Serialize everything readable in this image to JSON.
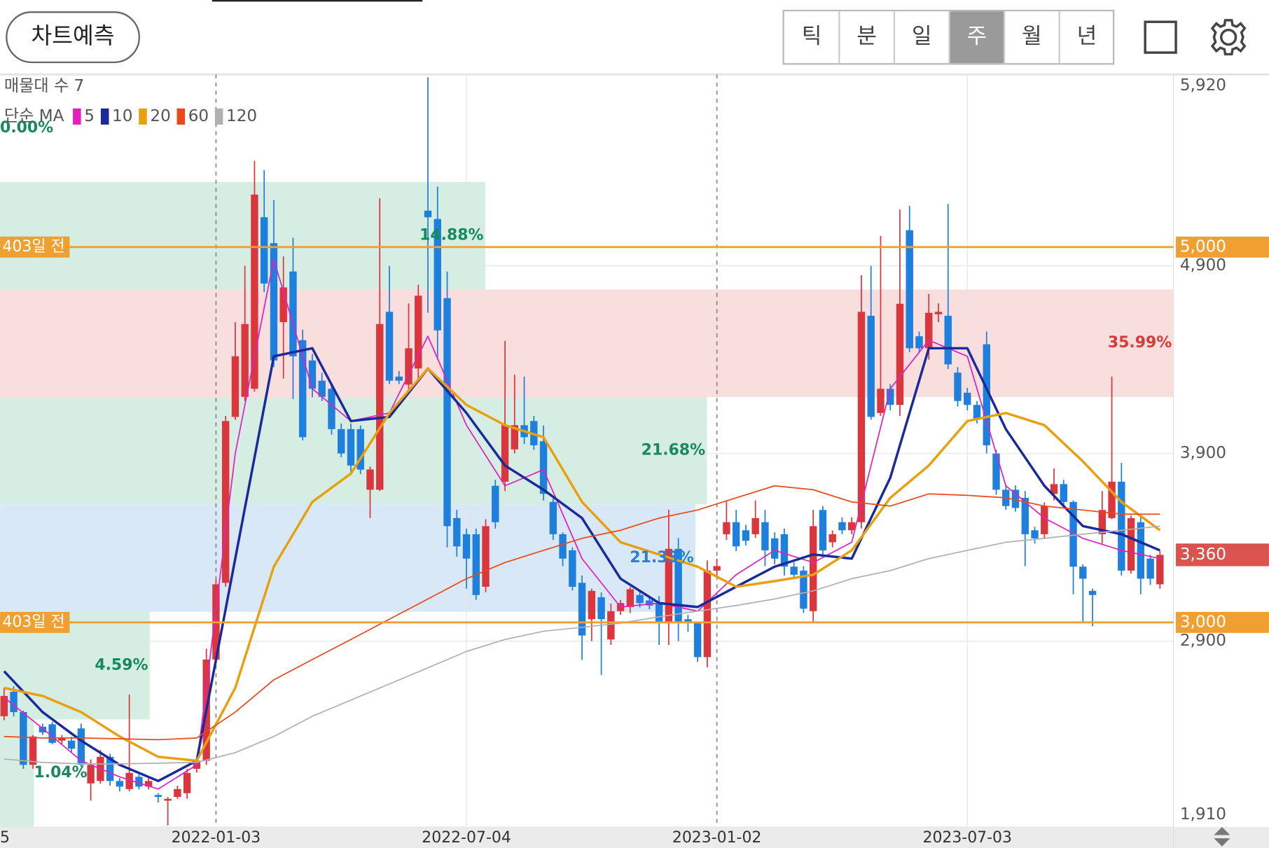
{
  "header": {
    "predict_button": "차트예측",
    "tabs": [
      "틱",
      "분",
      "일",
      "주",
      "월",
      "년"
    ],
    "active_tab": "주"
  },
  "chart_data": {
    "type": "candlestick",
    "volume_profile_label": "매물대 수 7",
    "ma_label": "단순 MA",
    "ylim": [
      1910,
      5920
    ],
    "yticks": [
      {
        "value": 5920,
        "label": "5,920"
      },
      {
        "value": 4900,
        "label": "4,900"
      },
      {
        "value": 3900,
        "label": "3,900"
      },
      {
        "value": 2900,
        "label": "2,900"
      },
      {
        "value": 1910,
        "label": "1,910"
      }
    ],
    "xlim": [
      -0.42,
      121.4
    ],
    "xticks": [
      {
        "value": -0.2,
        "label": "5"
      },
      {
        "value": 22,
        "label": "2022-01-03"
      },
      {
        "value": 48,
        "label": "2022-07-04"
      },
      {
        "value": 74,
        "label": "2023-01-02"
      },
      {
        "value": 100,
        "label": "2023-07-03"
      }
    ],
    "grid": true,
    "up_color": "#d9363e",
    "down_color": "#1f7fdc",
    "candles": [
      [
        2500,
        2651,
        2478,
        2608
      ],
      [
        2630,
        2660,
        2500,
        2522
      ],
      [
        2522,
        2530,
        2220,
        2241
      ],
      [
        2241,
        2400,
        2220,
        2392
      ],
      [
        2444,
        2460,
        2400,
        2414
      ],
      [
        2457,
        2470,
        2350,
        2358
      ],
      [
        2370,
        2400,
        2350,
        2385
      ],
      [
        2370,
        2390,
        2310,
        2327
      ],
      [
        2435,
        2460,
        2230,
        2241
      ],
      [
        2142,
        2270,
        2050,
        2241
      ],
      [
        2155,
        2320,
        2140,
        2284
      ],
      [
        2284,
        2300,
        2130,
        2155
      ],
      [
        2155,
        2170,
        2100,
        2125
      ],
      [
        2112,
        2616,
        2100,
        2198
      ],
      [
        2177,
        2190,
        2110,
        2125
      ],
      [
        2125,
        2170,
        2110,
        2155
      ],
      [
        2080,
        2090,
        2040,
        2070
      ],
      [
        2050,
        2070,
        1918,
        2060
      ],
      [
        2070,
        2130,
        2060,
        2112
      ],
      [
        2090,
        2220,
        2060,
        2198
      ],
      [
        2220,
        2280,
        2200,
        2263
      ],
      [
        2263,
        2860,
        2240,
        2802
      ],
      [
        2802,
        3230,
        2780,
        3203
      ],
      [
        3211,
        4100,
        3190,
        4073
      ],
      [
        4095,
        4600,
        4080,
        4418
      ],
      [
        4202,
        4900,
        4180,
        4590
      ],
      [
        4245,
        5460,
        4230,
        5280
      ],
      [
        5159,
        5410,
        4760,
        4806
      ],
      [
        5021,
        5250,
        4360,
        4396
      ],
      [
        4600,
        4950,
        4300,
        4785
      ],
      [
        4870,
        5050,
        4190,
        4418
      ],
      [
        4504,
        4560,
        3970,
        3987
      ],
      [
        4396,
        4430,
        4200,
        4245
      ],
      [
        4288,
        4330,
        4180,
        4202
      ],
      [
        4245,
        4260,
        4000,
        4030
      ],
      [
        4030,
        4060,
        3880,
        3900
      ],
      [
        4030,
        4060,
        3800,
        3836
      ],
      [
        4030,
        4050,
        3790,
        3814
      ],
      [
        3707,
        3830,
        3556,
        3815
      ],
      [
        3707,
        5260,
        3700,
        4590
      ],
      [
        4655,
        4900,
        4270,
        4288
      ],
      [
        4310,
        4340,
        4270,
        4288
      ],
      [
        4267,
        4700,
        4240,
        4461
      ],
      [
        4353,
        4800,
        4300,
        4741
      ],
      [
        5194,
        5905,
        4650,
        5159
      ],
      [
        5150,
        5323,
        4400,
        4556
      ],
      [
        4728,
        4870,
        3400,
        3513
      ],
      [
        3556,
        3600,
        3350,
        3405
      ],
      [
        3470,
        3500,
        3180,
        3340
      ],
      [
        3470,
        3500,
        3120,
        3146
      ],
      [
        3190,
        3550,
        3160,
        3513
      ],
      [
        3728,
        3760,
        3500,
        3534
      ],
      [
        3750,
        4500,
        3700,
        4051
      ],
      [
        3922,
        4320,
        3900,
        4051
      ],
      [
        4051,
        4310,
        3950,
        3987
      ],
      [
        4073,
        4100,
        3920,
        3944
      ],
      [
        3965,
        4050,
        3650,
        3685
      ],
      [
        3642,
        3660,
        3440,
        3470
      ],
      [
        3470,
        3480,
        3300,
        3340
      ],
      [
        3384,
        3400,
        3170,
        3190
      ],
      [
        3211,
        3250,
        2800,
        2930
      ],
      [
        3017,
        3180,
        2900,
        3168
      ],
      [
        3134,
        3160,
        2720,
        3017
      ],
      [
        2909,
        3100,
        2880,
        3060
      ],
      [
        3060,
        3120,
        3040,
        3103
      ],
      [
        3082,
        3190,
        3050,
        3177
      ],
      [
        3146,
        3170,
        3080,
        3103
      ],
      [
        3117,
        3140,
        3070,
        3090
      ],
      [
        3103,
        3140,
        2880,
        2996
      ],
      [
        2996,
        3600,
        2880,
        3392
      ],
      [
        3392,
        3450,
        2900,
        2996
      ],
      [
        3017,
        3040,
        2950,
        2996
      ],
      [
        2996,
        3000,
        2790,
        2815
      ],
      [
        2815,
        3330,
        2760,
        3276
      ],
      [
        3276,
        3340,
        3250,
        3300
      ],
      [
        3470,
        3650,
        3440,
        3534
      ],
      [
        3534,
        3600,
        3380,
        3405
      ],
      [
        3491,
        3520,
        3410,
        3435
      ],
      [
        3470,
        3650,
        3450,
        3556
      ],
      [
        3534,
        3600,
        3300,
        3384
      ],
      [
        3448,
        3480,
        3310,
        3340
      ],
      [
        3470,
        3500,
        3250,
        3297
      ],
      [
        3297,
        3320,
        3230,
        3254
      ],
      [
        3276,
        3300,
        3050,
        3073
      ],
      [
        3060,
        3600,
        3000,
        3513
      ],
      [
        3599,
        3620,
        3360,
        3384
      ],
      [
        3427,
        3490,
        3400,
        3470
      ],
      [
        3534,
        3560,
        3470,
        3491
      ],
      [
        3491,
        3560,
        3470,
        3534
      ],
      [
        3534,
        4850,
        3500,
        4655
      ],
      [
        4634,
        4900,
        4080,
        4095
      ],
      [
        4116,
        5060,
        4100,
        4245
      ],
      [
        4245,
        4270,
        4130,
        4159
      ],
      [
        4159,
        5200,
        4100,
        4698
      ],
      [
        5090,
        5220,
        4440,
        4461
      ],
      [
        4525,
        4550,
        4440,
        4461
      ],
      [
        4461,
        4750,
        4400,
        4650
      ],
      [
        4642,
        4700,
        4600,
        4655
      ],
      [
        4634,
        5230,
        4350,
        4375
      ],
      [
        4331,
        4360,
        4150,
        4180
      ],
      [
        4224,
        4250,
        4130,
        4159
      ],
      [
        4159,
        4180,
        4060,
        4080
      ],
      [
        4482,
        4550,
        3900,
        3944
      ],
      [
        3900,
        3920,
        3680,
        3707
      ],
      [
        3707,
        3730,
        3600,
        3620
      ],
      [
        3707,
        3730,
        3590,
        3610
      ],
      [
        3664,
        3700,
        3300,
        3470
      ],
      [
        3491,
        3510,
        3420,
        3448
      ],
      [
        3470,
        3640,
        3450,
        3620
      ],
      [
        3685,
        3820,
        3650,
        3737
      ],
      [
        3737,
        3760,
        3620,
        3642
      ],
      [
        3642,
        3650,
        3150,
        3297
      ],
      [
        3297,
        3310,
        3000,
        3233
      ],
      [
        3168,
        3180,
        2980,
        3146
      ],
      [
        3470,
        3700,
        3420,
        3599
      ],
      [
        3556,
        4310,
        3550,
        3750
      ],
      [
        3750,
        3850,
        3250,
        3276
      ],
      [
        3276,
        3570,
        3260,
        3556
      ],
      [
        3534,
        3560,
        3150,
        3233
      ],
      [
        3340,
        3360,
        3200,
        3233
      ],
      [
        3203,
        3380,
        3180,
        3360
      ]
    ],
    "ma_x": [
      0,
      4,
      8,
      12,
      16,
      20,
      24,
      28,
      32,
      36,
      40,
      44,
      48,
      52,
      56,
      60,
      64,
      68,
      72,
      76,
      80,
      84,
      88,
      92,
      96,
      100,
      104,
      108,
      112,
      116,
      120
    ],
    "ma": [
      {
        "name": "5",
        "color": "#e020c0",
        "values": [
          2600,
          2435,
          2263,
          2177,
          2112,
          2241,
          3900,
          4935,
          4245,
          4073,
          4116,
          4525,
          4051,
          3728,
          3814,
          3340,
          3082,
          3103,
          3060,
          3254,
          3384,
          3319,
          3427,
          4245,
          4504,
          4418,
          3728,
          3556,
          3448,
          3384,
          3340
        ]
      },
      {
        "name": "10",
        "color": "#1a2a9a",
        "values": [
          2740,
          2522,
          2370,
          2241,
          2155,
          2263,
          3340,
          4418,
          4461,
          4073,
          4095,
          4353,
          4116,
          3836,
          3707,
          3556,
          3233,
          3103,
          3082,
          3190,
          3297,
          3362,
          3340,
          3771,
          4461,
          4461,
          4030,
          3728,
          3513,
          3470,
          3384
        ]
      },
      {
        "name": "20",
        "color": "#e8a010",
        "values": [
          2651,
          2608,
          2522,
          2392,
          2284,
          2263,
          2651,
          3297,
          3642,
          3793,
          4116,
          4353,
          4159,
          4051,
          3987,
          3642,
          3427,
          3362,
          3297,
          3190,
          3220,
          3254,
          3384,
          3664,
          3836,
          4073,
          4116,
          4051,
          3858,
          3642,
          3491
        ]
      },
      {
        "name": "60",
        "color": "#e84a1a",
        "values": [
          2392,
          2384,
          2384,
          2380,
          2375,
          2384,
          2522,
          2694,
          2802,
          2909,
          3017,
          3125,
          3233,
          3319,
          3384,
          3448,
          3491,
          3556,
          3599,
          3664,
          3728,
          3707,
          3642,
          3620,
          3685,
          3677,
          3664,
          3620,
          3599,
          3577,
          3577
        ]
      },
      {
        "name": "120",
        "color": "#b0b0b0",
        "values": [
          2272,
          2254,
          2246,
          2246,
          2250,
          2254,
          2306,
          2392,
          2500,
          2586,
          2672,
          2758,
          2845,
          2909,
          2953,
          2974,
          2996,
          3030,
          3060,
          3090,
          3125,
          3168,
          3233,
          3276,
          3340,
          3384,
          3427,
          3448,
          3470,
          3491,
          3513
        ]
      }
    ],
    "bands": {
      "ranges": [
        [
          1910,
          2483
        ],
        [
          2483,
          3056
        ],
        [
          3056,
          3629
        ],
        [
          3629,
          4201
        ],
        [
          4201,
          4774
        ],
        [
          4774,
          5347
        ],
        [
          5347,
          5920
        ]
      ],
      "values": [
        1.04,
        4.59,
        21.33,
        21.68,
        35.99,
        14.88,
        0
      ],
      "value_labels": [
        "1.04%",
        "4.59%",
        "21.33%",
        "21.68%",
        "35.99%",
        "14.88%",
        "0.00%"
      ],
      "color": "#d6ede4",
      "max_color": "#f9dede",
      "current_color": "#d9e8f7",
      "label_color": "#168a5c",
      "max_label_color": "#d43c3c",
      "current_label_color": "#2a7fd0"
    },
    "levels": [
      {
        "value": 5000,
        "label": "5,000",
        "tag": "403일 전"
      },
      {
        "value": 3000,
        "label": "3,000",
        "tag": "403일 전"
      }
    ],
    "level_color": "#f0a030",
    "current": {
      "value": 3360,
      "label": "3,360",
      "color": "#d9534f"
    }
  }
}
